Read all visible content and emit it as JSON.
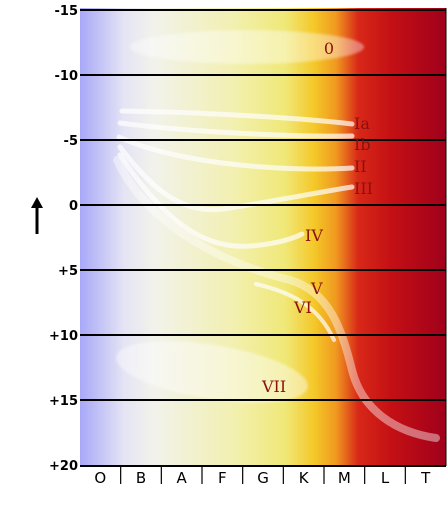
{
  "diagram": {
    "y_axis": {
      "ticks": [
        "-15",
        "-10",
        "-5",
        "0",
        "+5",
        "+10",
        "+15",
        "+20"
      ],
      "arrow": "up-arrow-icon"
    },
    "x_axis": {
      "spectral_classes": [
        "O",
        "B",
        "A",
        "F",
        "G",
        "K",
        "M",
        "L",
        "T"
      ]
    },
    "luminosity_classes": [
      "0",
      "Ia",
      "Ib",
      "II",
      "III",
      "IV",
      "V",
      "VI",
      "VII"
    ],
    "colors": {
      "gradient": [
        "#a8a8f8",
        "#f4f4f0",
        "#f0f0a0",
        "#f2c020",
        "#d81410",
        "#a00018"
      ],
      "band_fill": "#ffffff",
      "label_color": "#8b1010",
      "gridline": "#000000"
    }
  }
}
